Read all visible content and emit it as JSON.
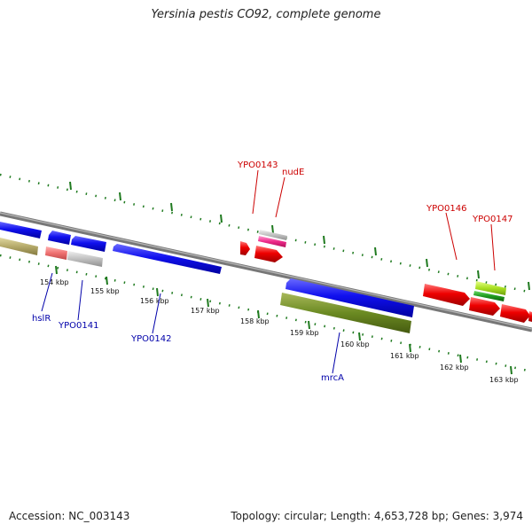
{
  "title": "Yersinia pestis CO92, complete genome",
  "footer": {
    "accession": "Accession: NC_003143",
    "summary": "Topology: circular; Length: 4,653,728 bp; Genes: 3,974"
  },
  "colors": {
    "backbone": "#777777",
    "tick": "#1f7a1f",
    "forward_label": "#cc0000",
    "reverse_label": "#0000aa"
  },
  "scale_labels": [
    "154 kbp",
    "155 kbp",
    "156 kbp",
    "157 kbp",
    "158 kbp",
    "159 kbp",
    "160 kbp",
    "161 kbp",
    "162 kbp",
    "163 kbp"
  ],
  "forward_labels": [
    "YPO0143",
    "nudE",
    "YPO0146",
    "YPO0147"
  ],
  "reverse_labels": [
    "hslR",
    "YPO0141",
    "YPO0142",
    "mrcA"
  ]
}
